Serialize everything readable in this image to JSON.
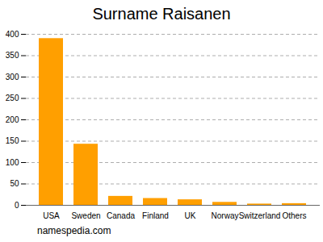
{
  "chart_data": {
    "type": "bar",
    "title": "Surname Raisanen",
    "caption": "namespedia.com",
    "categories": [
      "USA",
      "Sweden",
      "Canada",
      "Finland",
      "UK",
      "Norway",
      "Switzerland",
      "Others"
    ],
    "values": [
      390,
      143,
      21,
      16,
      13,
      7,
      3,
      4
    ],
    "color": "#ff9f00",
    "ylim": [
      0,
      400
    ],
    "yticks": [
      0,
      50,
      100,
      150,
      200,
      250,
      300,
      350,
      400
    ],
    "grid": true
  }
}
